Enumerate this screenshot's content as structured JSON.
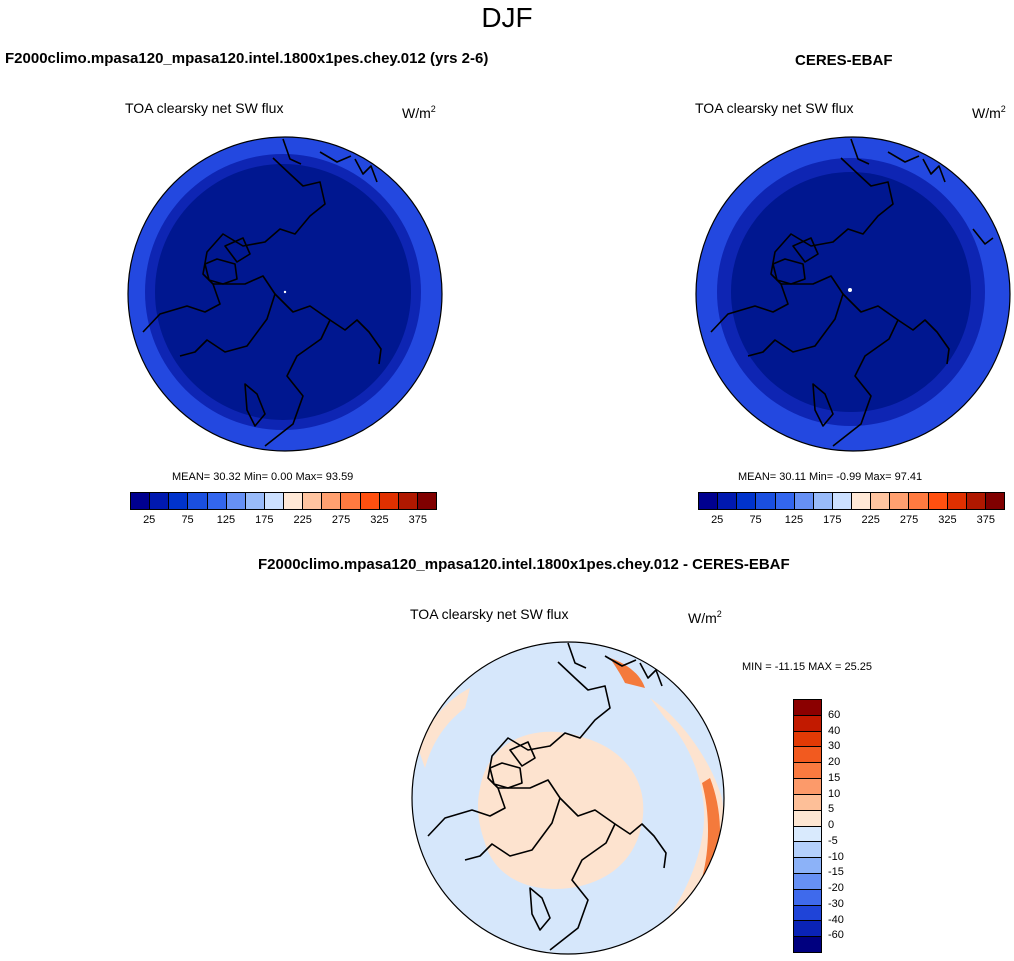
{
  "season": "DJF",
  "panels": {
    "model": {
      "title": "F2000climo.mpasa120_mpasa120.intel.1800x1pes.chey.012 (yrs 2-6)",
      "variable": "TOA clearsky net SW flux",
      "units_base": "W/m",
      "units_exp": "2",
      "stats": {
        "mean": "30.32",
        "min": "0.00",
        "max": "93.59"
      },
      "stats_label": "MEAN=  30.32  Min=   0.00  Max=  93.59"
    },
    "obs": {
      "title": "CERES-EBAF",
      "variable": "TOA clearsky net SW flux",
      "units_base": "W/m",
      "units_exp": "2",
      "stats": {
        "mean": "30.11",
        "min": "-0.99",
        "max": "97.41"
      },
      "stats_label": "MEAN=  30.11  Min=  -0.99  Max=  97.41"
    },
    "diff": {
      "title": "F2000climo.mpasa120_mpasa120.intel.1800x1pes.chey.012 - CERES-EBAF",
      "variable": "TOA clearsky net SW flux",
      "units_base": "W/m",
      "units_exp": "2",
      "stats": {
        "min": "-11.15",
        "max": "25.25"
      },
      "stats_label": "MIN = -11.15 MAX =  25.25"
    }
  },
  "colorbars": {
    "field": {
      "ticks": [
        "25",
        "75",
        "125",
        "175",
        "225",
        "275",
        "325",
        "375"
      ],
      "colors": [
        "#00008f",
        "#0019b0",
        "#0033cc",
        "#1a4fe0",
        "#3366ee",
        "#6690f5",
        "#99bbfa",
        "#cce0ff",
        "#ffe8d6",
        "#ffc4a0",
        "#ffa070",
        "#ff7a40",
        "#ff5010",
        "#e03000",
        "#b01800",
        "#800000"
      ]
    },
    "diff": {
      "labels": [
        "60",
        "40",
        "30",
        "20",
        "15",
        "10",
        "5",
        "0",
        "-5",
        "-10",
        "-15",
        "-20",
        "-30",
        "-40",
        "-60"
      ],
      "colors": [
        "#8b0000",
        "#c21a00",
        "#e23a05",
        "#f25a1f",
        "#fa7a40",
        "#fc9a6a",
        "#fdbf98",
        "#fde6d2",
        "#d9eafd",
        "#b4d0fc",
        "#8cb2f8",
        "#6690f4",
        "#3f6aec",
        "#1f44d8",
        "#0a23b6",
        "#00007f"
      ]
    }
  },
  "colors": {
    "field_outer": "#2348e0",
    "field_mid": "#0e25b3",
    "field_inner": "#001790",
    "diff_base": "#d6e7fb",
    "diff_warm": "#fde3cf",
    "diff_hot": "#f47a3c"
  }
}
